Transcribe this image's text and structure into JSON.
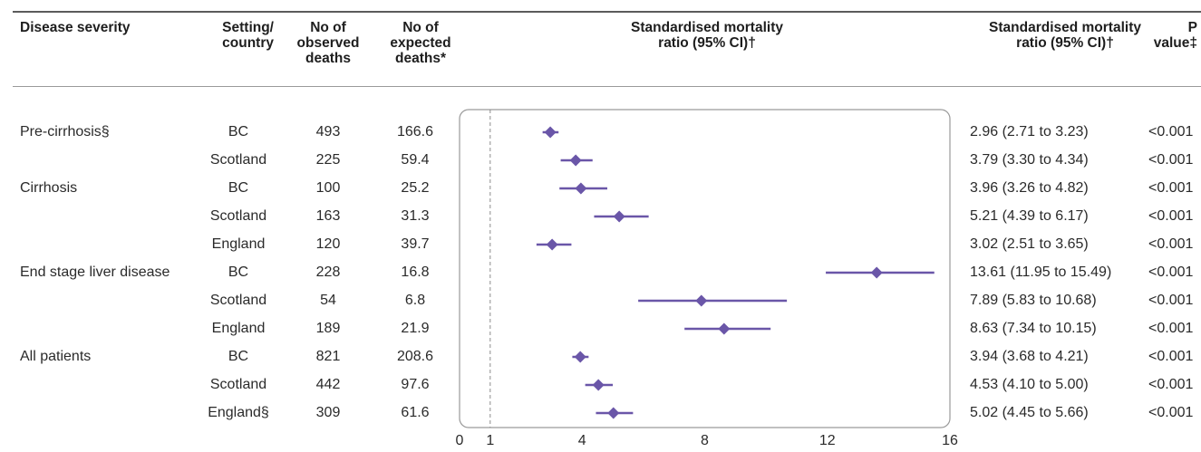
{
  "headers": {
    "severity": "Disease severity",
    "setting": "Setting/ country",
    "observed": "No of observed deaths",
    "expected": "No of expected deaths*",
    "plot": "Standardised mortality ratio (95% CI)†",
    "smr": "Standardised mortality ratio (95% CI)†",
    "p": "P value‡"
  },
  "rows": [
    {
      "severity": "Pre-cirrhosis§",
      "setting": "BC",
      "observed": "493",
      "expected": "166.6",
      "smr_text": "2.96 (2.71 to 3.23)",
      "p": "<0.001"
    },
    {
      "severity": "",
      "setting": "Scotland",
      "observed": "225",
      "expected": "59.4",
      "smr_text": "3.79 (3.30 to 4.34)",
      "p": "<0.001"
    },
    {
      "severity": "Cirrhosis",
      "setting": "BC",
      "observed": "100",
      "expected": "25.2",
      "smr_text": "3.96 (3.26 to 4.82)",
      "p": "<0.001"
    },
    {
      "severity": "",
      "setting": "Scotland",
      "observed": "163",
      "expected": "31.3",
      "smr_text": "5.21 (4.39 to 6.17)",
      "p": "<0.001"
    },
    {
      "severity": "",
      "setting": "England",
      "observed": "120",
      "expected": "39.7",
      "smr_text": "3.02 (2.51 to 3.65)",
      "p": "<0.001"
    },
    {
      "severity": "End stage liver disease",
      "setting": "BC",
      "observed": "228",
      "expected": "16.8",
      "smr_text": "13.61 (11.95 to 15.49)",
      "p": "<0.001"
    },
    {
      "severity": "",
      "setting": "Scotland",
      "observed": "54",
      "expected": "6.8",
      "smr_text": "7.89 (5.83 to 10.68)",
      "p": "<0.001"
    },
    {
      "severity": "",
      "setting": "England",
      "observed": "189",
      "expected": "21.9",
      "smr_text": "8.63 (7.34 to 10.15)",
      "p": "<0.001"
    },
    {
      "severity": "All patients",
      "setting": "BC",
      "observed": "821",
      "expected": "208.6",
      "smr_text": "3.94 (3.68 to 4.21)",
      "p": "<0.001"
    },
    {
      "severity": "",
      "setting": "Scotland",
      "observed": "442",
      "expected": "97.6",
      "smr_text": "4.53 (4.10 to 5.00)",
      "p": "<0.001"
    },
    {
      "severity": "",
      "setting": "England§",
      "observed": "309",
      "expected": "61.6",
      "smr_text": "5.02 (4.45 to 5.66)",
      "p": "<0.001"
    }
  ],
  "chart_data": {
    "type": "scatter",
    "subtype": "forest",
    "title": "Standardised mortality ratio (95% CI)†",
    "xlim": [
      0,
      16
    ],
    "xticks": [
      "0",
      "1",
      "4",
      "8",
      "12",
      "16"
    ],
    "reference_line": 1,
    "marker_color": "#6a56a8",
    "series": [
      {
        "estimates": [
          2.96,
          3.79,
          3.96,
          5.21,
          3.02,
          13.61,
          7.89,
          8.63,
          3.94,
          4.53,
          5.02
        ],
        "lower": [
          2.71,
          3.3,
          3.26,
          4.39,
          2.51,
          11.95,
          5.83,
          7.34,
          3.68,
          4.1,
          4.45
        ],
        "upper": [
          3.23,
          4.34,
          4.82,
          6.17,
          3.65,
          15.49,
          10.68,
          10.15,
          4.21,
          5.0,
          5.66
        ]
      }
    ]
  }
}
